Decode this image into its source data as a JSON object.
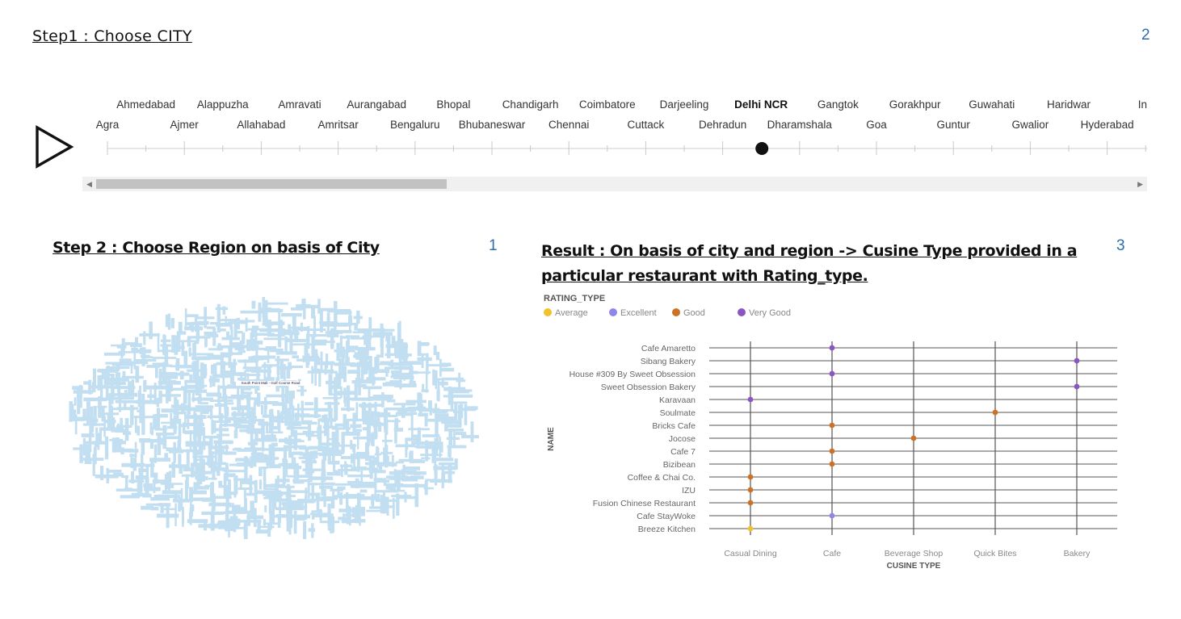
{
  "step1": {
    "title": "Step1  :   Choose CITY",
    "number": "2"
  },
  "timeline": {
    "cities": [
      "Agra",
      "Ahmedabad",
      "Ajmer",
      "Alappuzha",
      "Allahabad",
      "Amravati",
      "Amritsar",
      "Aurangabad",
      "Bengaluru",
      "Bhopal",
      "Bhubaneswar",
      "Chandigarh",
      "Chennai",
      "Coimbatore",
      "Cuttack",
      "Darjeeling",
      "Dehradun",
      "Delhi NCR",
      "Dharamshala",
      "Gangtok",
      "Goa",
      "Gorakhpur",
      "Guntur",
      "Guwahati",
      "Gwalior",
      "Haridwar",
      "Hyderabad",
      "Ind"
    ],
    "selected": "Delhi NCR",
    "play_icon": "play-icon"
  },
  "step2": {
    "title": "Step 2 : Choose Region on basis of City",
    "number": "1",
    "highlight_word": "South Point Mall - Golf Course Road"
  },
  "result": {
    "title": "Result : On basis of city and region -> Cusine Type provided in a particular restaurant with Rating_type.",
    "number": "3"
  },
  "colors": {
    "Average": "#f2c12e",
    "Excellent": "#8f87e8",
    "Good": "#cc7226",
    "Very Good": "#8b55c4",
    "wordcloud": "#c2def1",
    "accent_num": "#2c6cb0"
  },
  "chart_data": {
    "type": "scatter",
    "legend_title": "RATING_TYPE",
    "legend": [
      "Average",
      "Excellent",
      "Good",
      "Very Good"
    ],
    "legend_placement": "top-left",
    "xlabel": "CUSINE TYPE",
    "ylabel": "NAME",
    "categories_x": [
      "Casual Dining",
      "Cafe",
      "Beverage Shop",
      "Quick Bites",
      "Bakery"
    ],
    "categories_y": [
      "Cafe Amaretto",
      "Sibang Bakery",
      "House #309 By Sweet Obsession",
      "Sweet Obsession Bakery",
      "Karavaan",
      "Soulmate",
      "Bricks Cafe",
      "Jocose",
      "Cafe 7",
      "Bizibean",
      "Coffee & Chai Co.",
      "IZU",
      "Fusion Chinese Restaurant",
      "Cafe StayWoke",
      "Breeze Kitchen"
    ],
    "points": [
      {
        "name": "Cafe Amaretto",
        "x": "Cafe",
        "rating": "Very Good"
      },
      {
        "name": "Sibang Bakery",
        "x": "Bakery",
        "rating": "Very Good"
      },
      {
        "name": "House #309 By Sweet Obsession",
        "x": "Cafe",
        "rating": "Very Good"
      },
      {
        "name": "Sweet Obsession Bakery",
        "x": "Bakery",
        "rating": "Very Good"
      },
      {
        "name": "Karavaan",
        "x": "Casual Dining",
        "rating": "Very Good"
      },
      {
        "name": "Soulmate",
        "x": "Quick Bites",
        "rating": "Good"
      },
      {
        "name": "Bricks Cafe",
        "x": "Cafe",
        "rating": "Good"
      },
      {
        "name": "Jocose",
        "x": "Beverage Shop",
        "rating": "Good"
      },
      {
        "name": "Cafe 7",
        "x": "Cafe",
        "rating": "Good"
      },
      {
        "name": "Bizibean",
        "x": "Cafe",
        "rating": "Good"
      },
      {
        "name": "Coffee & Chai Co.",
        "x": "Casual Dining",
        "rating": "Good"
      },
      {
        "name": "IZU",
        "x": "Casual Dining",
        "rating": "Good"
      },
      {
        "name": "Fusion Chinese Restaurant",
        "x": "Casual Dining",
        "rating": "Good"
      },
      {
        "name": "Cafe StayWoke",
        "x": "Cafe",
        "rating": "Excellent"
      },
      {
        "name": "Breeze Kitchen",
        "x": "Casual Dining",
        "rating": "Average"
      }
    ],
    "grid": true
  }
}
